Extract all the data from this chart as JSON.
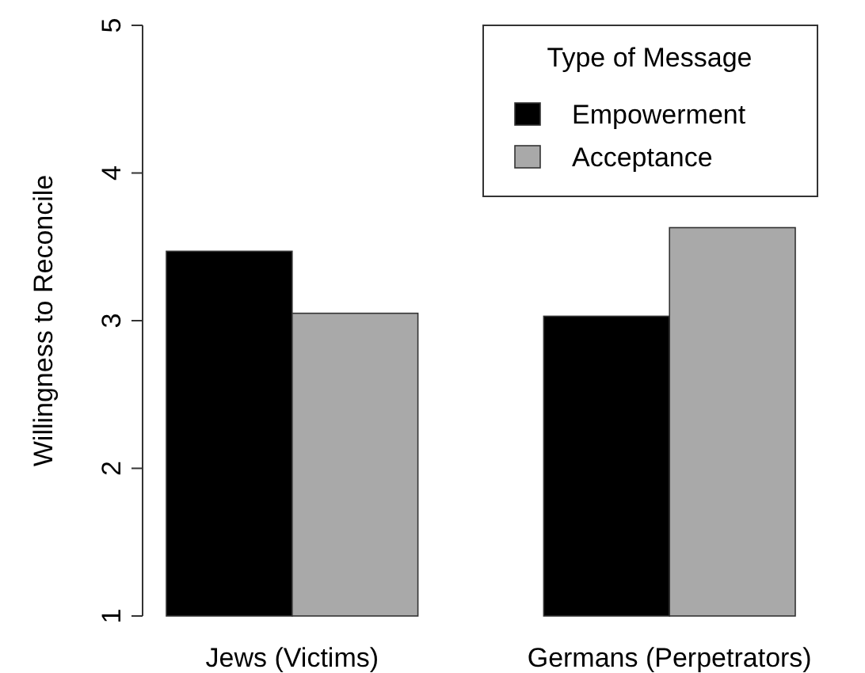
{
  "chart_data": {
    "type": "bar",
    "ylabel": "Willingness to Reconcile",
    "legend_title": "Type of Message",
    "categories": [
      "Jews (Victims)",
      "Germans (Perpetrators)"
    ],
    "series": [
      {
        "name": "Empowerment",
        "color": "#000000",
        "values": [
          3.47,
          3.03
        ]
      },
      {
        "name": "Acceptance",
        "color": "#a9a9a9",
        "values": [
          3.05,
          3.63
        ]
      }
    ],
    "ylim": [
      1,
      5
    ],
    "yticks": [
      1,
      2,
      3,
      4,
      5
    ],
    "legend": "top right"
  }
}
